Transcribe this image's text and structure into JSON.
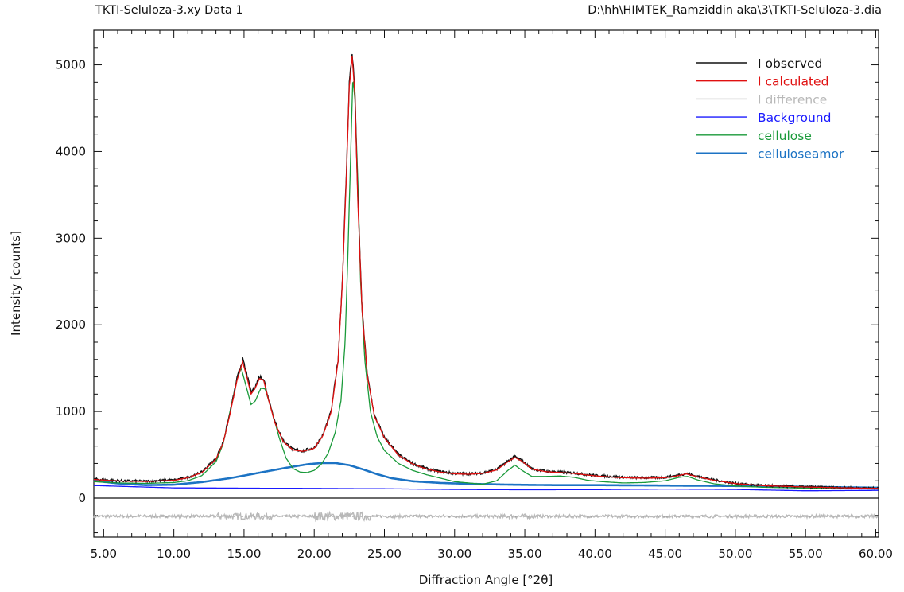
{
  "header": {
    "left": "TKTI-Seluloza-3.xy Data 1",
    "right": "D:\\hh\\HIMTEK_Ramziddin aka\\3\\TKTI-Seluloza-3.dia"
  },
  "chart_data": {
    "type": "line",
    "xlabel": "Diffraction Angle [°2θ]",
    "ylabel": "Intensity [counts]",
    "xlim": [
      4.3,
      60.2
    ],
    "ylim": [
      -450,
      5400
    ],
    "x_ticks": [
      "5.00",
      "10.00",
      "15.00",
      "20.00",
      "25.00",
      "30.00",
      "35.00",
      "40.00",
      "45.00",
      "50.00",
      "55.00",
      "60.00"
    ],
    "x_tick_values": [
      5,
      10,
      15,
      20,
      25,
      30,
      35,
      40,
      45,
      50,
      55,
      60
    ],
    "y_ticks": [
      "0",
      "1000",
      "2000",
      "3000",
      "4000",
      "5000"
    ],
    "y_tick_values": [
      0,
      1000,
      2000,
      3000,
      4000,
      5000
    ],
    "difference_offset": -210,
    "series": [
      {
        "name": "I observed",
        "color": "#111111",
        "noise": true,
        "x": [
          4.3,
          6,
          8,
          10,
          11,
          12,
          13,
          13.5,
          14,
          14.5,
          14.9,
          15.2,
          15.5,
          15.8,
          16.1,
          16.4,
          16.7,
          17.2,
          17.8,
          18.5,
          19.2,
          20,
          20.6,
          21.2,
          21.7,
          22.0,
          22.3,
          22.5,
          22.7,
          22.9,
          23.1,
          23.4,
          23.8,
          24.3,
          25,
          26,
          27,
          28,
          29,
          30,
          31,
          32,
          33,
          33.8,
          34.3,
          34.8,
          35.5,
          36.5,
          37.5,
          38.5,
          39.5,
          40.5,
          42,
          43.5,
          45,
          45.8,
          46.5,
          47.2,
          48.5,
          50,
          52,
          55,
          58,
          60.2
        ],
        "y": [
          220,
          200,
          195,
          210,
          240,
          300,
          460,
          640,
          980,
          1380,
          1600,
          1430,
          1220,
          1290,
          1400,
          1380,
          1180,
          880,
          660,
          560,
          545,
          580,
          720,
          1000,
          1600,
          2500,
          3800,
          4800,
          5150,
          4700,
          3500,
          2200,
          1400,
          950,
          700,
          500,
          400,
          340,
          305,
          285,
          280,
          290,
          330,
          430,
          480,
          430,
          340,
          310,
          300,
          290,
          270,
          255,
          240,
          235,
          240,
          260,
          285,
          255,
          210,
          170,
          145,
          130,
          120,
          115
        ]
      },
      {
        "name": "I calculated",
        "color": "#e01010",
        "noise": false,
        "x": [
          4.3,
          6,
          8,
          10,
          11,
          12,
          13,
          13.5,
          14,
          14.5,
          14.9,
          15.2,
          15.5,
          15.8,
          16.1,
          16.4,
          16.7,
          17.2,
          17.8,
          18.5,
          19.2,
          20,
          20.6,
          21.2,
          21.7,
          22.0,
          22.3,
          22.5,
          22.7,
          22.9,
          23.1,
          23.4,
          23.8,
          24.3,
          25,
          26,
          27,
          28,
          29,
          30,
          31,
          32,
          33,
          33.8,
          34.3,
          34.8,
          35.5,
          36.5,
          37.5,
          38.5,
          39.5,
          40.5,
          42,
          43.5,
          45,
          45.8,
          46.5,
          47.2,
          48.5,
          50,
          52,
          55,
          58,
          60.2
        ],
        "y": [
          215,
          198,
          192,
          205,
          235,
          295,
          450,
          630,
          970,
          1360,
          1570,
          1400,
          1200,
          1270,
          1380,
          1360,
          1160,
          870,
          650,
          555,
          540,
          575,
          715,
          990,
          1580,
          2480,
          3750,
          4750,
          5100,
          4650,
          3460,
          2180,
          1390,
          940,
          695,
          495,
          395,
          335,
          300,
          280,
          275,
          285,
          325,
          420,
          470,
          425,
          335,
          305,
          295,
          285,
          265,
          250,
          235,
          230,
          235,
          255,
          280,
          250,
          205,
          168,
          143,
          128,
          118,
          112
        ]
      },
      {
        "name": "I difference",
        "color": "#b8b8b8",
        "noise": false,
        "x": [],
        "y": []
      },
      {
        "name": "Background",
        "color": "#1a1aff",
        "noise": false,
        "x": [
          4.3,
          10,
          15,
          20,
          25,
          30,
          35,
          40,
          45,
          50,
          55,
          60.2
        ],
        "y": [
          145,
          118,
          115,
          112,
          108,
          100,
          96,
          98,
          105,
          100,
          85,
          90
        ]
      },
      {
        "name": "cellulose",
        "color": "#1a9a3a",
        "noise": false,
        "x": [
          4.3,
          6,
          8,
          10,
          11,
          12,
          13,
          13.5,
          14,
          14.5,
          14.8,
          15.1,
          15.5,
          15.8,
          16.2,
          16.5,
          17,
          17.5,
          18,
          18.5,
          19,
          19.5,
          20,
          20.5,
          21,
          21.5,
          21.9,
          22.2,
          22.4,
          22.6,
          22.75,
          22.9,
          23.1,
          23.3,
          23.6,
          24,
          24.5,
          25,
          26,
          27,
          28,
          30,
          32,
          33,
          33.8,
          34.3,
          34.8,
          35.5,
          36.5,
          37.5,
          38.5,
          39.5,
          40.5,
          42,
          43.5,
          45,
          46,
          46.6,
          47.3,
          48.5,
          50,
          52,
          55,
          58,
          60.2
        ],
        "y": [
          190,
          175,
          170,
          180,
          200,
          260,
          420,
          620,
          1000,
          1380,
          1500,
          1320,
          1080,
          1120,
          1270,
          1260,
          1000,
          700,
          460,
          340,
          300,
          295,
          320,
          390,
          520,
          760,
          1120,
          1800,
          2800,
          4000,
          4850,
          4600,
          3700,
          2500,
          1600,
          1000,
          700,
          550,
          400,
          320,
          270,
          190,
          160,
          200,
          320,
          380,
          320,
          250,
          250,
          255,
          240,
          205,
          190,
          175,
          180,
          200,
          240,
          250,
          210,
          165,
          140,
          125,
          115,
          108,
          105
        ]
      },
      {
        "name": "celluloseamor",
        "color": "#1c73c4",
        "noise": false,
        "x": [
          4.3,
          6,
          8,
          10,
          12,
          14,
          16,
          18,
          19.5,
          20.5,
          21.5,
          22.5,
          23.5,
          24.5,
          25.5,
          27,
          29,
          31,
          34,
          37,
          40,
          45,
          50,
          55,
          60.2
        ],
        "y": [
          200,
          170,
          150,
          155,
          185,
          230,
          290,
          350,
          390,
          405,
          405,
          380,
          330,
          275,
          230,
          195,
          175,
          165,
          155,
          150,
          150,
          145,
          140,
          130,
          120
        ]
      }
    ],
    "legend": {
      "placement": "top-right",
      "text_colors": [
        "#111111",
        "#e01010",
        "#b8b8b8",
        "#1a1aff",
        "#1a9a3a",
        "#1c73c4"
      ]
    },
    "grid": false
  }
}
